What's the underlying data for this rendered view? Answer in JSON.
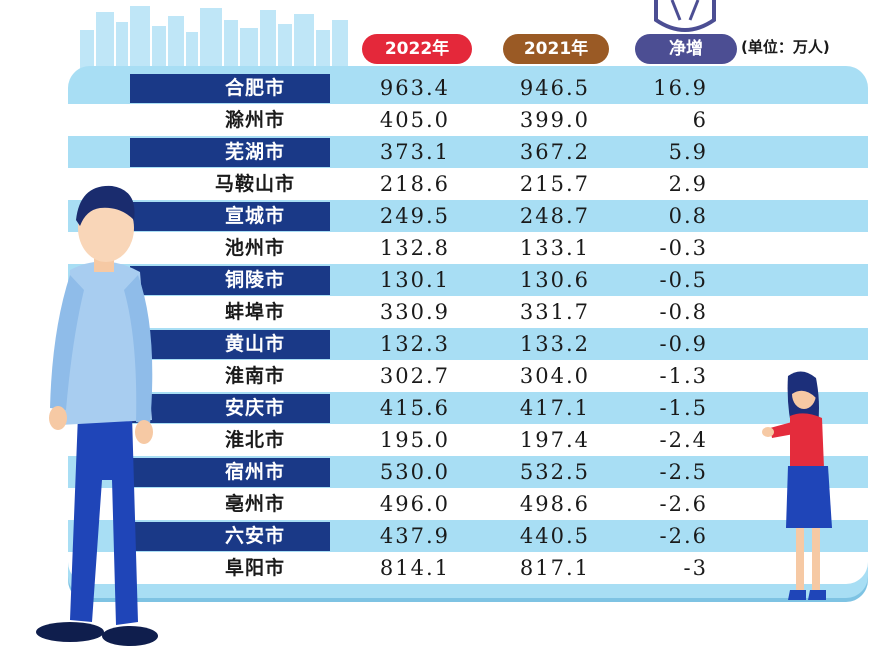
{
  "chart_data": {
    "type": "table",
    "unit_label": "(单位：万人)",
    "columns": [
      "2022年",
      "2021年",
      "净增"
    ],
    "rows": [
      {
        "city": "合肥市",
        "y2022": "963.4",
        "y2021": "946.5",
        "diff": "16.9"
      },
      {
        "city": "滁州市",
        "y2022": "405.0",
        "y2021": "399.0",
        "diff": "6"
      },
      {
        "city": "芜湖市",
        "y2022": "373.1",
        "y2021": "367.2",
        "diff": "5.9"
      },
      {
        "city": "马鞍山市",
        "y2022": "218.6",
        "y2021": "215.7",
        "diff": "2.9"
      },
      {
        "city": "宣城市",
        "y2022": "249.5",
        "y2021": "248.7",
        "diff": "0.8"
      },
      {
        "city": "池州市",
        "y2022": "132.8",
        "y2021": "133.1",
        "diff": "-0.3"
      },
      {
        "city": "铜陵市",
        "y2022": "130.1",
        "y2021": "130.6",
        "diff": "-0.5"
      },
      {
        "city": "蚌埠市",
        "y2022": "330.9",
        "y2021": "331.7",
        "diff": "-0.8"
      },
      {
        "city": "黄山市",
        "y2022": "132.3",
        "y2021": "133.2",
        "diff": "-0.9"
      },
      {
        "city": "淮南市",
        "y2022": "302.7",
        "y2021": "304.0",
        "diff": "-1.3"
      },
      {
        "city": "安庆市",
        "y2022": "415.6",
        "y2021": "417.1",
        "diff": "-1.5"
      },
      {
        "city": "淮北市",
        "y2022": "195.0",
        "y2021": "197.4",
        "diff": "-2.4"
      },
      {
        "city": "宿州市",
        "y2022": "530.0",
        "y2021": "532.5",
        "diff": "-2.5"
      },
      {
        "city": "亳州市",
        "y2022": "496.0",
        "y2021": "498.6",
        "diff": "-2.6"
      },
      {
        "city": "六安市",
        "y2022": "437.9",
        "y2021": "440.5",
        "diff": "-2.6"
      },
      {
        "city": "阜阳市",
        "y2022": "814.1",
        "y2021": "817.1",
        "diff": "-3"
      }
    ]
  },
  "colors": {
    "header_2022": "#e4283a",
    "header_2021": "#9a5a25",
    "header_diff": "#4c4e93",
    "row_light": "#a8def4",
    "row_dark_label": "#1a3987"
  }
}
